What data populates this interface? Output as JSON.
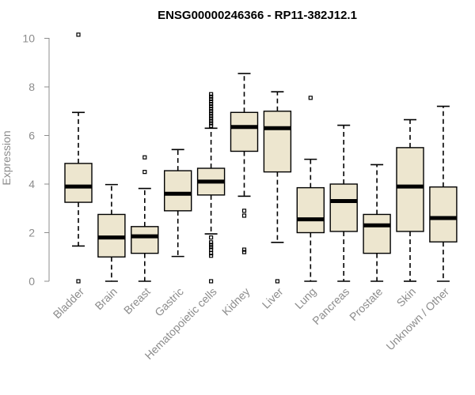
{
  "chart_data": {
    "type": "boxplot",
    "title": "ENSG00000246366 - RP11-382J12.1",
    "xlabel": "",
    "ylabel": "Expression",
    "ylim": [
      0,
      10.3
    ],
    "yticks": [
      0,
      2,
      4,
      6,
      8,
      10
    ],
    "box_color": "#ede6cf",
    "categories": [
      "Bladder",
      "Brain",
      "Breast",
      "Gastric",
      "Hematopoietic cells",
      "Kidney",
      "Liver",
      "Lung",
      "Pancreas",
      "Prostate",
      "Skin",
      "Unknown / Other"
    ],
    "boxes": [
      {
        "name": "Bladder",
        "whisker_low": 1.45,
        "q1": 3.25,
        "median": 3.9,
        "q3": 4.85,
        "whisker_high": 6.95,
        "outliers": [
          10.15,
          0.0
        ]
      },
      {
        "name": "Brain",
        "whisker_low": 0.0,
        "q1": 1.0,
        "median": 1.8,
        "q3": 2.75,
        "whisker_high": 3.98,
        "outliers": []
      },
      {
        "name": "Breast",
        "whisker_low": 0.0,
        "q1": 1.15,
        "median": 1.85,
        "q3": 2.25,
        "whisker_high": 3.82,
        "outliers": [
          5.1,
          4.5
        ]
      },
      {
        "name": "Gastric",
        "whisker_low": 1.02,
        "q1": 2.9,
        "median": 3.6,
        "q3": 4.55,
        "whisker_high": 5.42,
        "outliers": []
      },
      {
        "name": "Hematopoietic cells",
        "whisker_low": 1.95,
        "q1": 3.55,
        "median": 4.1,
        "q3": 4.65,
        "whisker_high": 6.3,
        "outliers": [
          7.7,
          7.6,
          7.5,
          7.4,
          7.3,
          7.2,
          7.1,
          7.0,
          6.9,
          6.8,
          6.7,
          6.6,
          6.5,
          6.4,
          1.8,
          1.6,
          1.5,
          1.4,
          1.3,
          1.15,
          1.05,
          0.0
        ]
      },
      {
        "name": "Kidney",
        "whisker_low": 3.5,
        "q1": 5.35,
        "median": 6.35,
        "q3": 6.95,
        "whisker_high": 8.55,
        "outliers": [
          2.9,
          2.7,
          1.3,
          1.2
        ]
      },
      {
        "name": "Liver",
        "whisker_low": 1.6,
        "q1": 4.5,
        "median": 6.3,
        "q3": 7.0,
        "whisker_high": 7.8,
        "outliers": [
          0.0
        ]
      },
      {
        "name": "Lung",
        "whisker_low": 0.0,
        "q1": 2.0,
        "median": 2.55,
        "q3": 3.85,
        "whisker_high": 5.02,
        "outliers": [
          7.55
        ]
      },
      {
        "name": "Pancreas",
        "whisker_low": 0.0,
        "q1": 2.05,
        "median": 3.3,
        "q3": 4.0,
        "whisker_high": 6.42,
        "outliers": []
      },
      {
        "name": "Prostate",
        "whisker_low": 0.0,
        "q1": 1.15,
        "median": 2.3,
        "q3": 2.75,
        "whisker_high": 4.8,
        "outliers": []
      },
      {
        "name": "Skin",
        "whisker_low": 0.0,
        "q1": 2.05,
        "median": 3.9,
        "q3": 5.5,
        "whisker_high": 6.65,
        "outliers": []
      },
      {
        "name": "Unknown / Other",
        "whisker_low": 0.0,
        "q1": 1.62,
        "median": 2.6,
        "q3": 3.88,
        "whisker_high": 7.2,
        "outliers": []
      }
    ]
  }
}
